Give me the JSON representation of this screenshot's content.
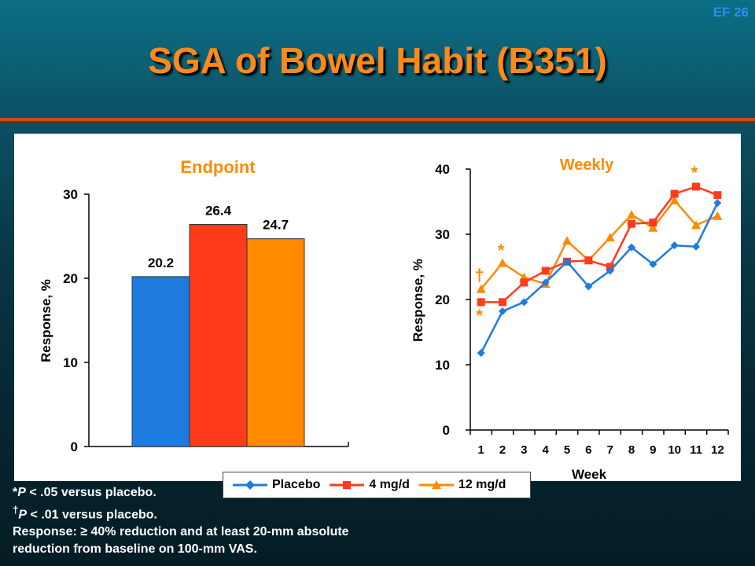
{
  "slide_id": "EF 26",
  "title": "SGA of Bowel Habit (B351)",
  "legend": {
    "placebo": "Placebo",
    "four_mg": "4 mg/d",
    "twelve_mg": "12 mg/d"
  },
  "footnotes": {
    "line1_mark": "*",
    "line1_p": "P",
    "line1_rest": " < .05 versus placebo.",
    "line2_mark": "†",
    "line2_p": "P",
    "line2_rest": " < .01 versus placebo.",
    "line3": "Response: ≥ 40% reduction and at least 20-mm absolute",
    "line4": "reduction from baseline on 100-mm VAS."
  },
  "colors": {
    "placebo": "#1e7be0",
    "four_mg": "#ff3b1c",
    "twelve_mg": "#ff8a00",
    "title": "#ff8a1a"
  },
  "chart_data": [
    {
      "type": "bar",
      "title": "Endpoint",
      "ylabel": "Response, %",
      "ylim": [
        0,
        30
      ],
      "yticks": [
        "0",
        "10",
        "20",
        "30"
      ],
      "categories": [
        "Placebo",
        "4 mg/d",
        "12 mg/d"
      ],
      "values": [
        20.2,
        26.4,
        24.7
      ],
      "data_labels": [
        "20.2",
        "26.4",
        "24.7"
      ]
    },
    {
      "type": "line",
      "title": "Weekly",
      "xlabel": "Week",
      "ylabel": "Response, %",
      "ylim": [
        0,
        40
      ],
      "yticks": [
        "0",
        "10",
        "20",
        "30",
        "40"
      ],
      "x": [
        1,
        2,
        3,
        4,
        5,
        6,
        7,
        8,
        9,
        10,
        11,
        12
      ],
      "xticks": [
        "1",
        "2",
        "3",
        "4",
        "5",
        "6",
        "7",
        "8",
        "9",
        "10",
        "11",
        "12"
      ],
      "series": [
        {
          "name": "Placebo",
          "values": [
            11.8,
            18.2,
            19.6,
            22.6,
            25.8,
            22.0,
            24.4,
            28.0,
            25.4,
            28.3,
            28.1,
            34.8
          ]
        },
        {
          "name": "4 mg/d",
          "values": [
            19.6,
            19.6,
            22.6,
            24.4,
            25.8,
            26.0,
            25.0,
            31.6,
            31.8,
            36.2,
            37.3,
            36.0
          ]
        },
        {
          "name": "12 mg/d",
          "values": [
            21.6,
            25.6,
            23.4,
            22.4,
            29.0,
            26.0,
            29.5,
            33.0,
            31.0,
            35.2,
            31.4,
            32.8
          ]
        }
      ],
      "annotations": [
        {
          "text": "†",
          "week": 1,
          "value": 23.8
        },
        {
          "text": "*",
          "week": 1,
          "value": 17.6
        },
        {
          "text": "*",
          "week": 2,
          "value": 27.6
        },
        {
          "text": "*",
          "week": 11,
          "value": 39.5
        }
      ]
    }
  ]
}
